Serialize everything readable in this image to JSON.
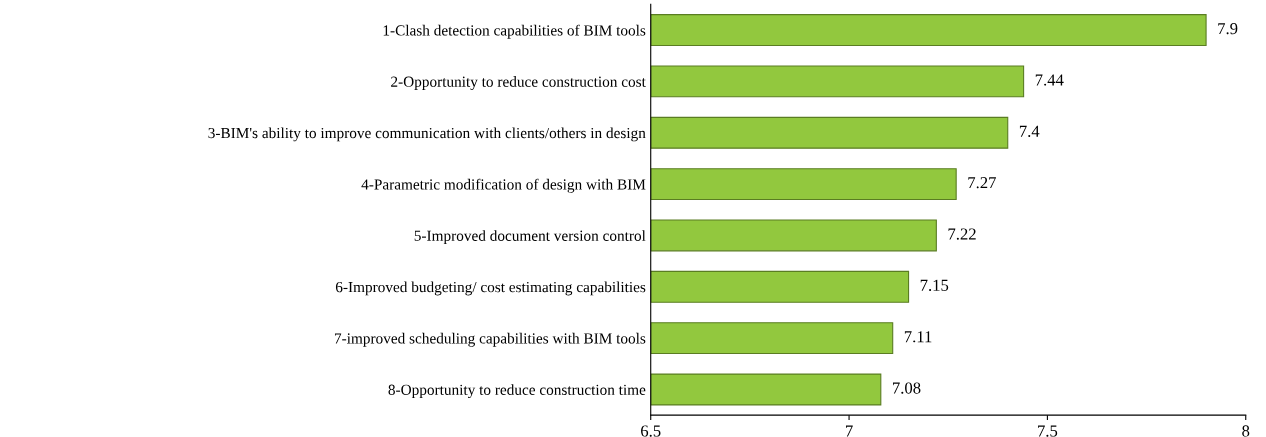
{
  "chart_data": {
    "type": "bar",
    "orientation": "horizontal",
    "categories": [
      "1-Clash detection capabilities of BIM tools",
      "2-Opportunity to reduce construction cost",
      "3-BIM's ability to improve communication with clients/others in design",
      "4-Parametric modification of design with BIM",
      "5-Improved document version control",
      "6-Improved budgeting/ cost estimating capabilities",
      "7-improved scheduling capabilities with BIM tools",
      "8-Opportunity to reduce construction time"
    ],
    "values": [
      7.9,
      7.44,
      7.4,
      7.27,
      7.22,
      7.15,
      7.11,
      7.08
    ],
    "color": "#92c83e",
    "xlim": [
      6.5,
      8
    ],
    "xticks": [
      6.5,
      7,
      7.5,
      8
    ],
    "data_labels": true,
    "grid": false,
    "legend": false
  }
}
